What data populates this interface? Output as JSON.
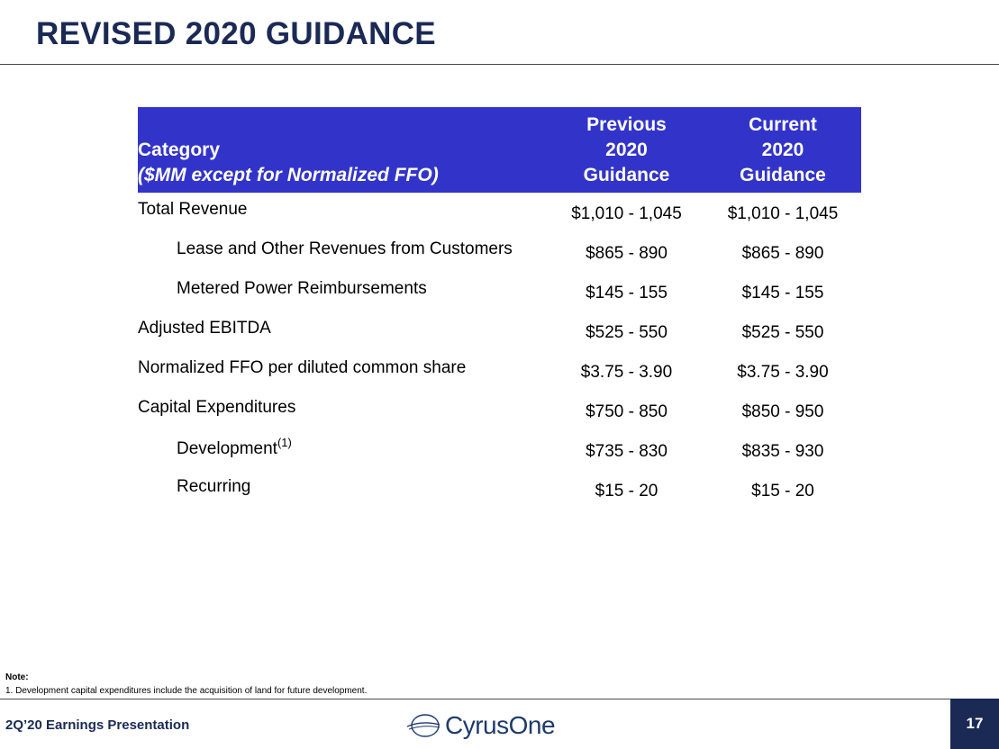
{
  "title": "REVISED 2020 GUIDANCE",
  "table": {
    "headers": {
      "category": "Category",
      "category_sub": "($MM except for Normalized FFO)",
      "previous": [
        "Previous",
        "2020",
        "Guidance"
      ],
      "current": [
        "Current",
        "2020",
        "Guidance"
      ]
    },
    "rows": [
      {
        "label": "Total Revenue",
        "sup": "",
        "previous": "$1,010 - 1,045",
        "current": "$1,010 - 1,045",
        "indent": false
      },
      {
        "label": "Lease and Other Revenues from Customers",
        "sup": "",
        "previous": "$865 - 890",
        "current": "$865 - 890",
        "indent": true
      },
      {
        "label": "Metered Power Reimbursements",
        "sup": "",
        "previous": "$145 - 155",
        "current": "$145 - 155",
        "indent": true
      },
      {
        "label": "Adjusted EBITDA",
        "sup": "",
        "previous": "$525 - 550",
        "current": "$525 - 550",
        "indent": false
      },
      {
        "label": "Normalized FFO per diluted common share",
        "sup": "",
        "previous": "$3.75 - 3.90",
        "current": "$3.75 - 3.90",
        "indent": false
      },
      {
        "label": "Capital Expenditures",
        "sup": "",
        "previous": "$750 - 850",
        "current": "$850 - 950",
        "indent": false
      },
      {
        "label": "Development",
        "sup": "(1)",
        "previous": "$735 - 830",
        "current": "$835 - 930",
        "indent": true
      },
      {
        "label": "Recurring",
        "sup": "",
        "previous": "$15 - 20",
        "current": "$15 - 20",
        "indent": true
      }
    ]
  },
  "notes": {
    "heading": "Note:",
    "items": [
      "1.  Development capital expenditures include the acquisition of land for future development."
    ]
  },
  "footer": {
    "presentation": "2Q’20 Earnings Presentation",
    "logo_text": "CyrusOne",
    "page_number": "17"
  },
  "colors": {
    "title": "#1b2a55",
    "header_bg": "#3234c9",
    "footer_box": "#1b2a55",
    "logo": "#1e3a6e"
  }
}
